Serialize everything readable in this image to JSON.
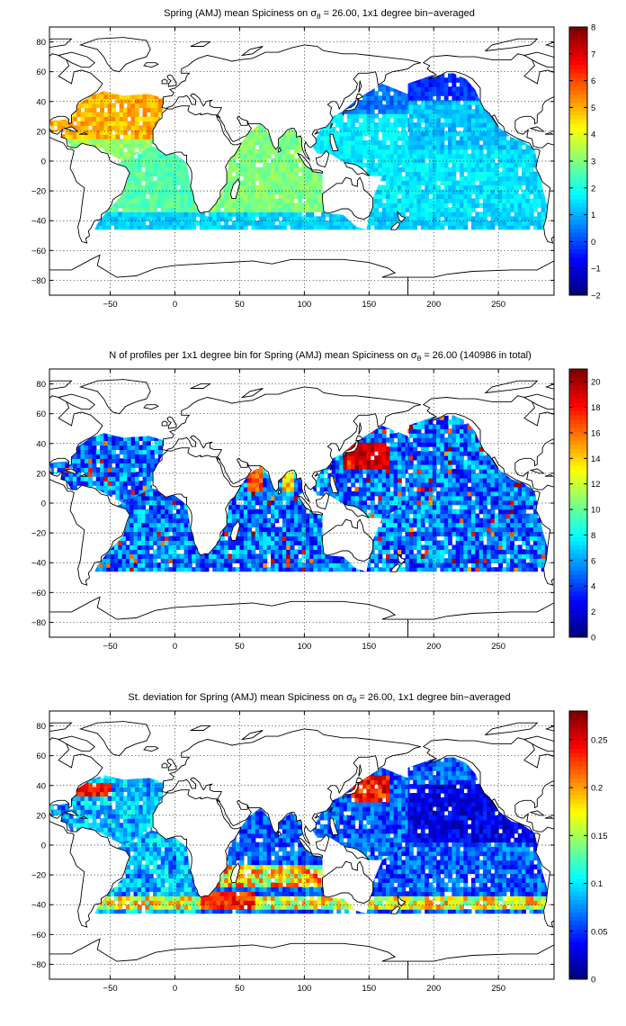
{
  "panels": [
    {
      "title_pre": "Spring (AMJ) mean Spiciness on σ",
      "title_sub": "θ",
      "title_post": " = 26.00, 1x1 degree bin−averaged",
      "colorbar": {
        "min": -2,
        "max": 8,
        "ticks": [
          -2,
          -1,
          0,
          1,
          2,
          3,
          4,
          5,
          6,
          7,
          8
        ],
        "colormap": "jet"
      },
      "field_summary": {
        "north_atlantic_subtropical": 5.0,
        "south_atlantic": 2.6,
        "indian_ocean": 3.0,
        "north_pacific_west": 1.6,
        "north_pacific_northeast": -0.5,
        "south_pacific": 1.5,
        "southern_band_40S": 1.3
      }
    },
    {
      "title_pre": "N of profiles per 1x1 degree bin for Spring (AMJ) mean Spiciness on σ",
      "title_sub": "θ",
      "title_post": " = 26.00 (140986 in total)",
      "colorbar": {
        "min": 0,
        "max": 21,
        "ticks": [
          0,
          2,
          4,
          6,
          8,
          10,
          12,
          14,
          16,
          18,
          20
        ],
        "colormap": "jet"
      },
      "field_summary": {
        "typical_open_ocean": 5,
        "kuroshio_region": 21,
        "arabian_sea": 19,
        "bay_of_bengal": 17
      }
    },
    {
      "title_pre": "St. deviation for Spring (AMJ) mean Spiciness on σ",
      "title_sub": "θ",
      "title_post": " = 26.00, 1x1 degree bin−averaged",
      "colorbar": {
        "min": 0,
        "max": 0.28,
        "ticks": [
          0,
          0.05,
          0.1,
          0.15,
          0.2,
          0.25
        ],
        "colormap": "jet"
      },
      "field_summary": {
        "gulf_stream": 0.27,
        "kuroshio": 0.27,
        "agulhas": 0.26,
        "open_pacific": 0.03,
        "southern_band_40S": 0.2
      }
    }
  ],
  "axes": {
    "lon_range": [
      -97,
      293
    ],
    "lat_range": [
      -90,
      90
    ],
    "x_ticks": [
      -50,
      0,
      50,
      100,
      150,
      200,
      250
    ],
    "y_ticks": [
      -80,
      -60,
      -40,
      -20,
      0,
      20,
      40,
      60,
      80
    ],
    "grid": "dotted"
  }
}
